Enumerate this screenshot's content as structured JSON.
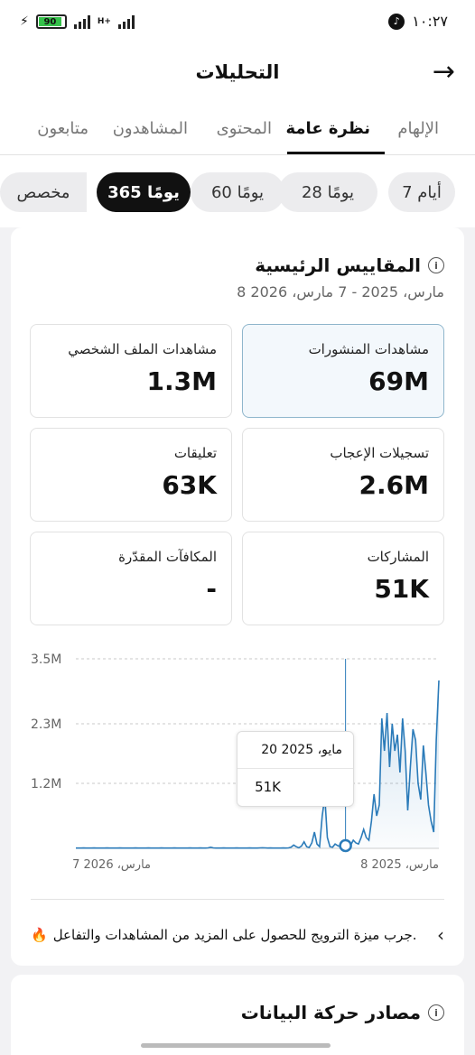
{
  "status_bar": {
    "time": "١٠:٢٧",
    "battery": "90",
    "network": "H+"
  },
  "header": {
    "title": "التحليلات"
  },
  "tabs": [
    "الإلهام",
    "نظرة عامة",
    "المحتوى",
    "المشاهدون",
    "متابعون"
  ],
  "active_tab": "نظرة عامة",
  "range_chips": [
    "7 أيام",
    "28 يومًا",
    "60 يومًا",
    "365 يومًا",
    "مخصص"
  ],
  "active_range": "365 يومًا",
  "metrics_section": {
    "title": "المقاييس الرئيسية",
    "date_range": "8 مارس، 2025 - 7 مارس، 2026",
    "metrics": [
      {
        "label": "مشاهدات المنشورات",
        "value": "69M",
        "selected": true
      },
      {
        "label": "مشاهدات الملف الشخصي",
        "value": "1.3M",
        "selected": false
      },
      {
        "label": "تسجيلات الإعجاب",
        "value": "2.6M",
        "selected": false
      },
      {
        "label": "تعليقات",
        "value": "63K",
        "selected": false
      },
      {
        "label": "المشاركات",
        "value": "51K",
        "selected": false
      },
      {
        "label": "المكافآت المقدّرة",
        "value": "-",
        "selected": false
      }
    ]
  },
  "chart_data": {
    "type": "area",
    "title": "",
    "y_ticks": [
      "3.5M",
      "2.3M",
      "1.2M"
    ],
    "y_tick_values": [
      3500000,
      2300000,
      1200000
    ],
    "ylim": [
      0,
      3500000
    ],
    "x_tick_labels": [
      "مارس، 2025 8",
      "مارس، 2026 7"
    ],
    "series": [
      {
        "values": [
          5000,
          5000,
          5000,
          6000,
          5000,
          5000,
          5000,
          6000,
          5000,
          5000,
          5000,
          5000,
          6000,
          5000,
          5000,
          5000,
          5000,
          6000,
          5000,
          5000,
          5000,
          5000,
          5000,
          6000,
          5000,
          5000,
          5000,
          5000,
          6000,
          5000,
          5000,
          5000,
          5000,
          6000,
          5000,
          5000,
          5000,
          5000,
          6000,
          5000,
          5000,
          5000,
          5000,
          5000,
          6000,
          5000,
          5000,
          5000,
          6000,
          5000,
          5000,
          8000,
          20000,
          8000,
          5000,
          5000,
          5000,
          6000,
          5000,
          5000,
          5000,
          5000,
          6000,
          5000,
          5000,
          5000,
          5000,
          6000,
          5000,
          5000,
          5000,
          8000,
          10000,
          8000,
          5000,
          6000,
          5000,
          5000,
          5000,
          5000,
          6000,
          5000,
          8000,
          20000,
          60000,
          30000,
          10000,
          40000,
          120000,
          30000,
          15000,
          100000,
          300000,
          80000,
          30000,
          600000,
          950000,
          200000,
          30000,
          20000,
          80000,
          50000,
          30000,
          10000,
          51000,
          30000,
          60000,
          150000,
          100000,
          80000,
          200000,
          350000,
          200000,
          150000,
          500000,
          1000000,
          600000,
          800000,
          2400000,
          1800000,
          2500000,
          1500000,
          2300000,
          1800000,
          2100000,
          1400000,
          2400000,
          1800000,
          700000,
          1500000,
          2200000,
          2000000,
          1200000,
          900000,
          1900000,
          1400000,
          800000,
          500000,
          300000,
          2000000,
          3100000
        ]
      }
    ],
    "tooltip": {
      "date": "مايو، 2025 20",
      "value": "51K"
    }
  },
  "promo": {
    "text": "جرب ميزة الترويج للحصول على المزيد من المشاهدات والتفاعل."
  },
  "traffic_section": {
    "title": "مصادر حركة البيانات"
  }
}
